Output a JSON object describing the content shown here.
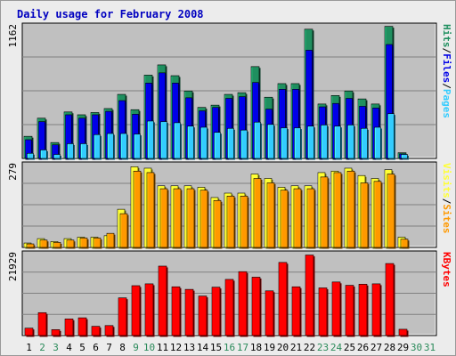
{
  "title": "Daily usage for February 2008",
  "colors": {
    "hits": "#1f8f5f",
    "files": "#0000e8",
    "pages": "#33ccff",
    "visits": "#ffff33",
    "sites": "#ff9900",
    "kbytes": "#ff0000",
    "weekday_label": "#000000",
    "weekend_label": "#2a8a5a",
    "panel_bg": "#c0c0c0"
  },
  "chart_data": [
    {
      "type": "bar",
      "panel": "hits-files-pages",
      "categories": [
        "1",
        "2",
        "3",
        "4",
        "5",
        "6",
        "7",
        "8",
        "9",
        "10",
        "11",
        "12",
        "13",
        "14",
        "15",
        "16",
        "17",
        "18",
        "19",
        "20",
        "21",
        "22",
        "23",
        "24",
        "25",
        "26",
        "27",
        "28",
        "29",
        "30",
        "31"
      ],
      "weekend_days": [
        "2",
        "3",
        "9",
        "10",
        "16",
        "17",
        "23",
        "24",
        "30",
        "31"
      ],
      "ymax_label": "1162",
      "ylim": [
        0,
        1162
      ],
      "legend": {
        "pages": "Pages",
        "files": "Files",
        "hits": "Hits",
        "sep": "/"
      },
      "series": [
        {
          "name": "Hits",
          "key": "hits",
          "values": [
            195,
            355,
            140,
            410,
            385,
            405,
            440,
            565,
            430,
            735,
            825,
            730,
            595,
            450,
            470,
            565,
            580,
            810,
            540,
            660,
            660,
            1140,
            480,
            555,
            595,
            525,
            480,
            1165,
            50,
            0,
            0
          ]
        },
        {
          "name": "Files",
          "key": "files",
          "values": [
            165,
            325,
            120,
            385,
            355,
            385,
            415,
            510,
            390,
            665,
            755,
            665,
            535,
            420,
            450,
            530,
            545,
            670,
            435,
            610,
            610,
            955,
            455,
            485,
            530,
            460,
            445,
            1005,
            40,
            0,
            0
          ]
        },
        {
          "name": "Pages",
          "key": "pages",
          "values": [
            45,
            75,
            35,
            130,
            130,
            210,
            220,
            220,
            215,
            330,
            325,
            315,
            285,
            275,
            230,
            265,
            250,
            320,
            300,
            270,
            270,
            285,
            295,
            285,
            295,
            265,
            275,
            395,
            35,
            0,
            0
          ]
        }
      ]
    },
    {
      "type": "bar",
      "panel": "visits-sites",
      "ymax_label": "279",
      "ylim": [
        0,
        279
      ],
      "legend": {
        "sites": "Sites",
        "visits": "Visits",
        "sep": "/"
      },
      "series": [
        {
          "name": "Visits",
          "key": "visits",
          "values": [
            15,
            30,
            20,
            30,
            35,
            35,
            40,
            130,
            275,
            270,
            210,
            210,
            210,
            205,
            170,
            185,
            185,
            250,
            235,
            205,
            210,
            210,
            255,
            260,
            270,
            245,
            235,
            265,
            35,
            0,
            0
          ]
        },
        {
          "name": "Sites",
          "key": "sites",
          "values": [
            12,
            25,
            17,
            25,
            32,
            32,
            48,
            115,
            260,
            255,
            200,
            200,
            200,
            195,
            160,
            175,
            175,
            235,
            220,
            195,
            200,
            200,
            240,
            255,
            260,
            220,
            225,
            250,
            28,
            0,
            0
          ]
        }
      ]
    },
    {
      "type": "bar",
      "panel": "kbytes",
      "ymax_label": "21929",
      "ylim": [
        0,
        21929
      ],
      "legend": {
        "kbytes": "KBytes"
      },
      "series": [
        {
          "name": "KBytes",
          "key": "kbytes",
          "values": [
            2000,
            6200,
            1600,
            4500,
            4800,
            2500,
            2700,
            10200,
            13500,
            14000,
            18800,
            13200,
            12500,
            10700,
            13100,
            15200,
            17300,
            15800,
            12100,
            19800,
            13200,
            21800,
            12900,
            14500,
            13600,
            13900,
            14000,
            19500,
            1700,
            0,
            0
          ]
        }
      ]
    }
  ]
}
